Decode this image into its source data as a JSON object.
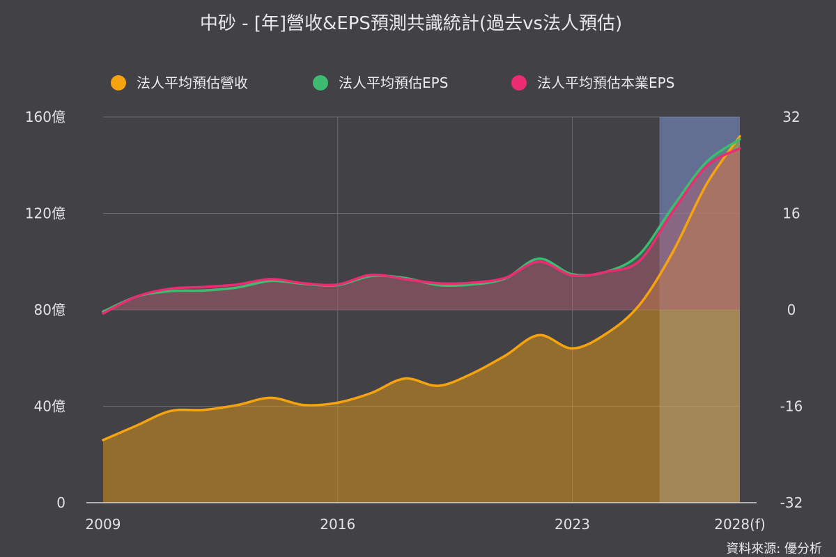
{
  "chart_data": {
    "type": "area",
    "title": "中砂 - [年]營收&EPS預測共識統計(過去vs法人預估)",
    "source": "資料來源: 優分析",
    "x_labels": [
      "2009",
      "2016",
      "2023",
      "2028(f)"
    ],
    "x": [
      2009,
      2010,
      2011,
      2012,
      2013,
      2014,
      2015,
      2016,
      2017,
      2018,
      2019,
      2020,
      2021,
      2022,
      2023,
      2024,
      2025,
      2026,
      2027,
      2028
    ],
    "forecast_start": 2025.6,
    "y_left": {
      "ticks": [
        "0",
        "40億",
        "80億",
        "120億",
        "160億"
      ],
      "range": [
        0,
        160
      ]
    },
    "y_right": {
      "ticks": [
        "-32",
        "-16",
        "0",
        "16",
        "32"
      ],
      "range": [
        -32,
        32
      ]
    },
    "legend_position": "top-center",
    "series": [
      {
        "name": "法人平均預估營收",
        "axis": "left",
        "color": "#f5a30f",
        "values": [
          26,
          32,
          38,
          38.5,
          40.5,
          43.5,
          40.5,
          41.5,
          45.5,
          51.5,
          48.5,
          53.5,
          61,
          69.5,
          64,
          70,
          82,
          104,
          132,
          152
        ]
      },
      {
        "name": "法人平均預估EPS",
        "axis": "right",
        "color": "#3dbb71",
        "values": [
          -0.3,
          2.2,
          3.1,
          3.2,
          3.7,
          4.8,
          4.3,
          4.1,
          5.6,
          5.3,
          4.1,
          4.2,
          5.2,
          8.5,
          5.9,
          6.3,
          9.2,
          17.1,
          24.5,
          28.3
        ]
      },
      {
        "name": "法人平均預估本業EPS",
        "axis": "right",
        "color": "#ec2c72",
        "values": [
          -0.6,
          2.2,
          3.5,
          3.8,
          4.2,
          5.1,
          4.4,
          4.2,
          5.8,
          5.1,
          4.4,
          4.5,
          5.3,
          8,
          5.7,
          6.3,
          8.1,
          16.3,
          23.8,
          26.8
        ]
      }
    ]
  }
}
